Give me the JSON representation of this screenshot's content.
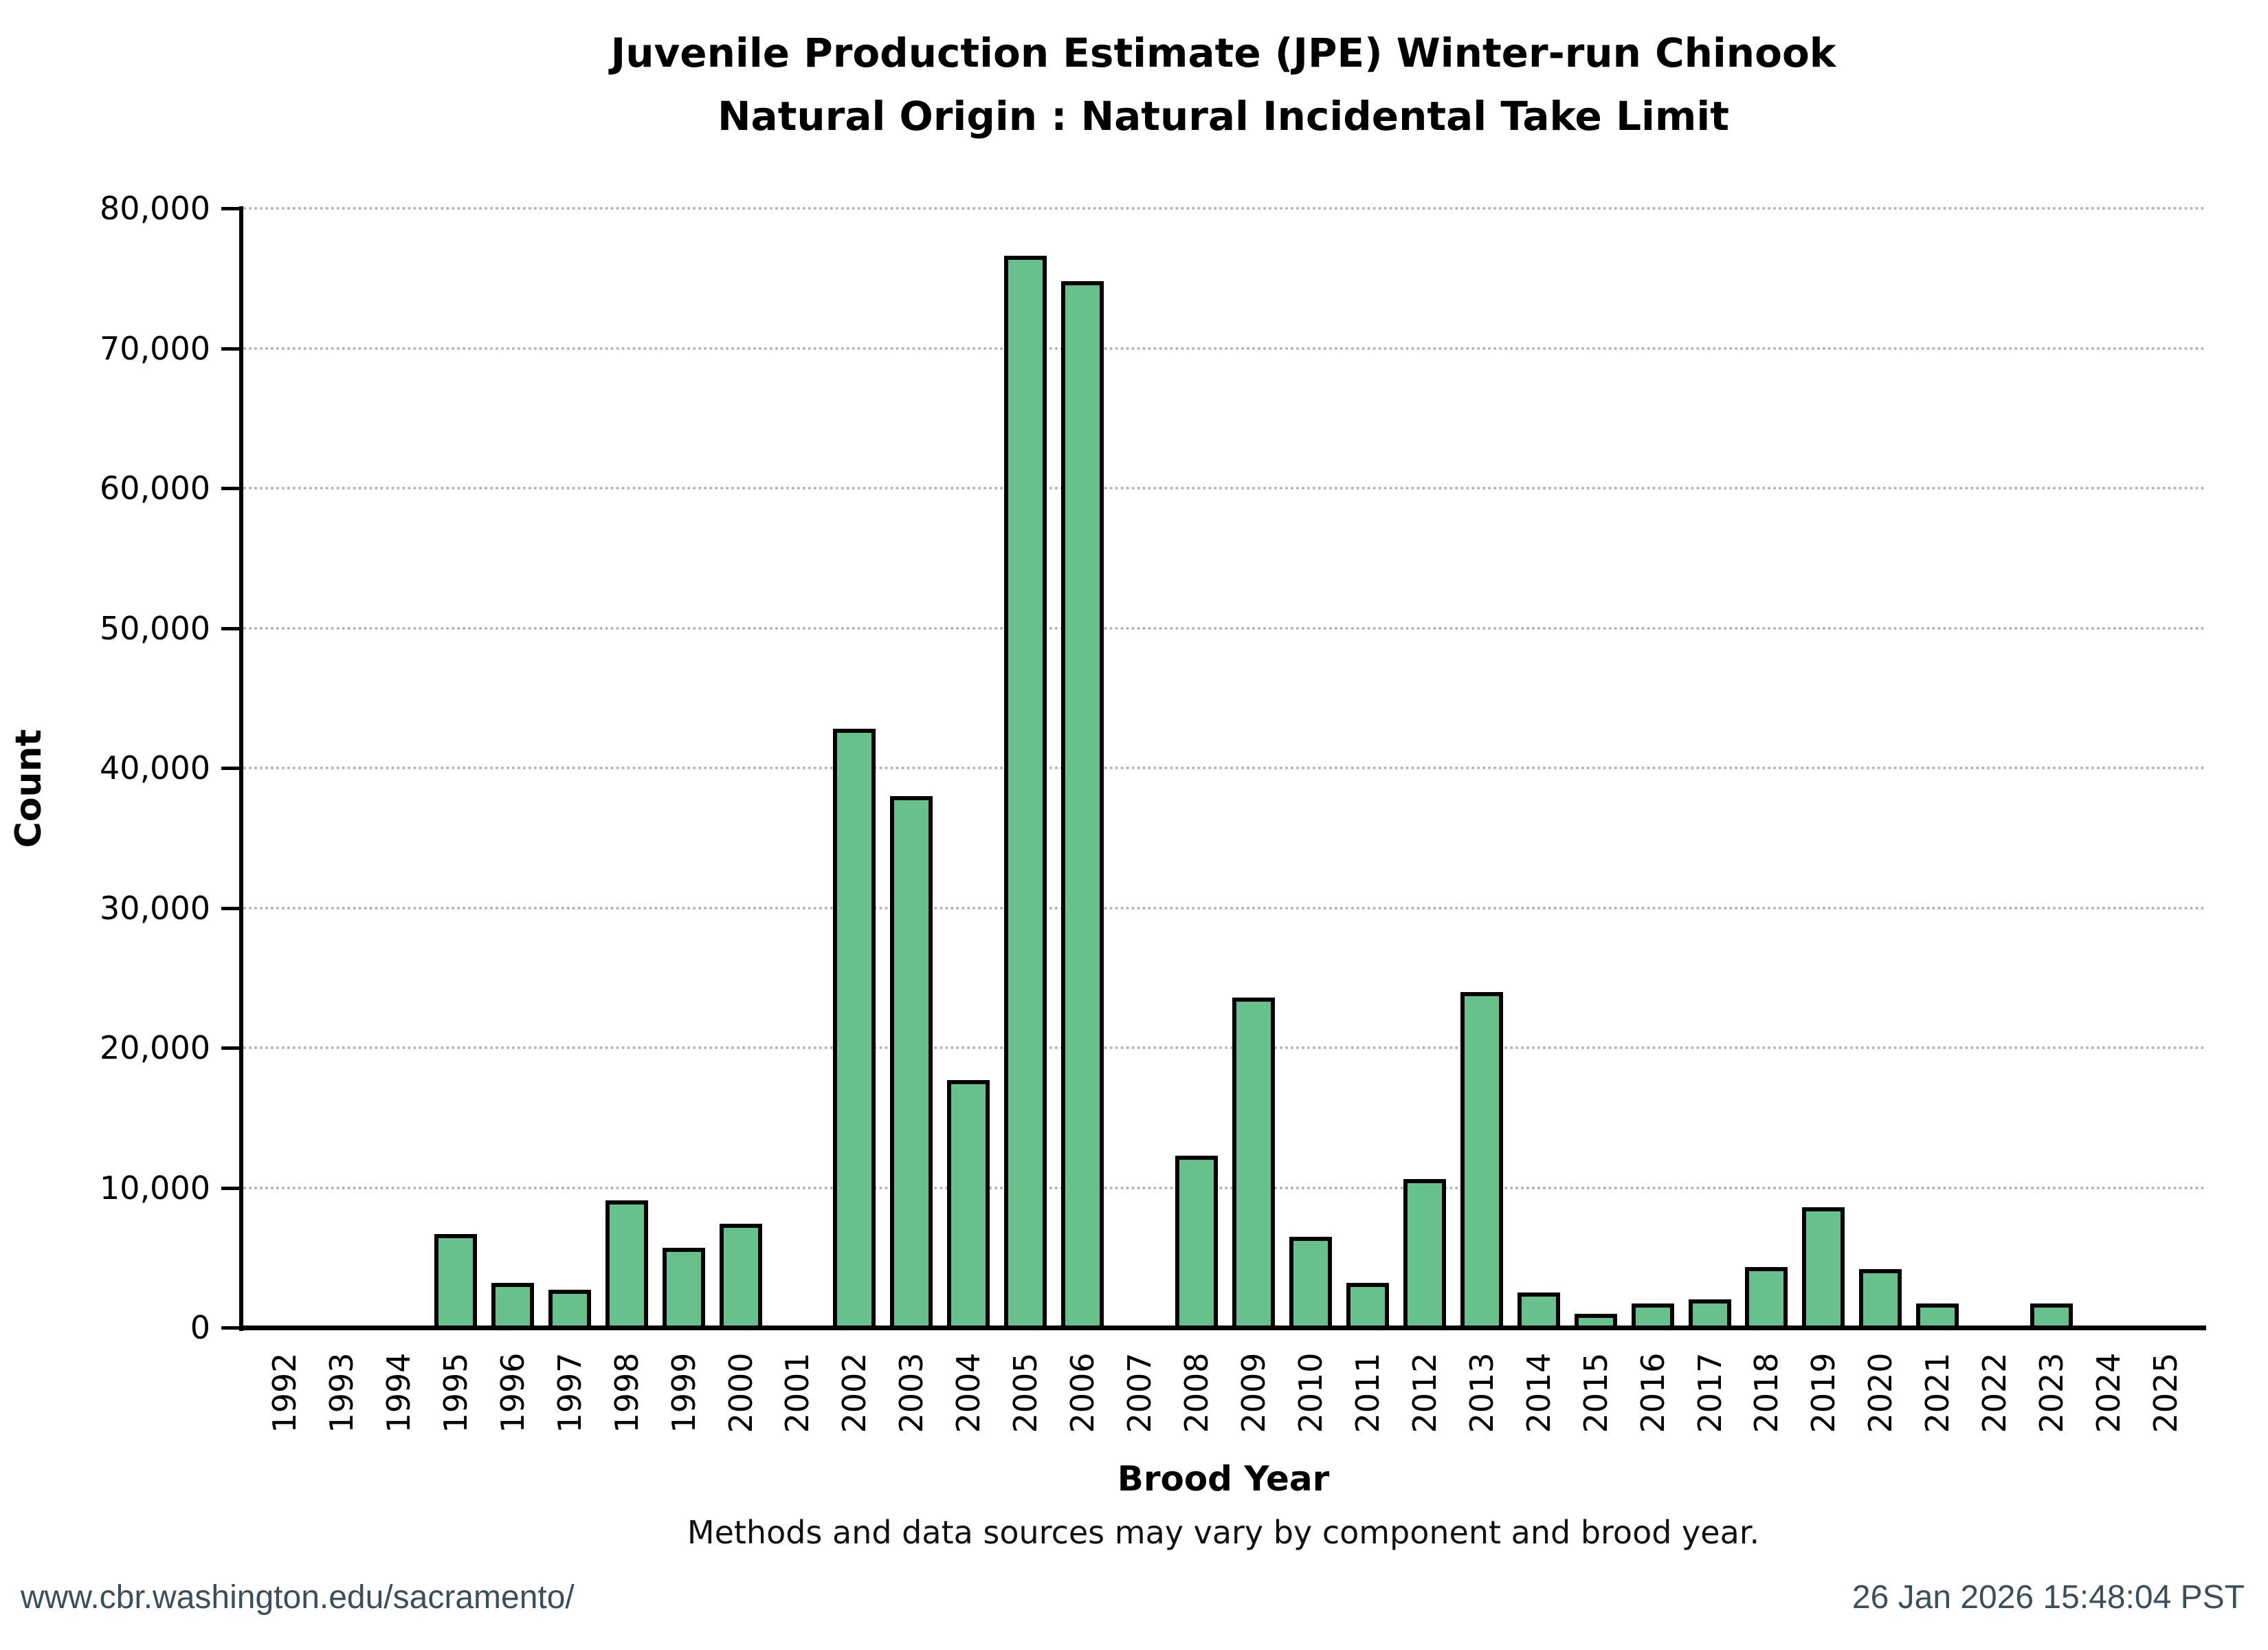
{
  "header": {
    "title_line1": "Juvenile Production Estimate (JPE) Winter-run Chinook",
    "title_line2": "Natural Origin : Natural Incidental Take Limit"
  },
  "axes": {
    "x_label": "Brood Year",
    "y_label": "Count"
  },
  "note": "Methods and data sources may vary by component and brood year.",
  "footer": {
    "left": "www.cbr.washington.edu/sacramento/",
    "right": "26 Jan 2026 15:48:04 PST"
  },
  "colors": {
    "bar_fill": "#66c18c",
    "bar_border": "#000000",
    "gridline": "#b3b3b3",
    "footer_text": "#3c4f58",
    "background": "#ffffff"
  },
  "chart_data": {
    "type": "bar",
    "title": "Juvenile Production Estimate (JPE) Winter-run Chinook — Natural Origin : Natural Incidental Take Limit",
    "xlabel": "Brood Year",
    "ylabel": "Count",
    "ylim": [
      0,
      80000
    ],
    "grid": "horizontal dotted",
    "legend": "none",
    "y_ticks": [
      {
        "value": 0,
        "label": "0"
      },
      {
        "value": 10000,
        "label": "10,000"
      },
      {
        "value": 20000,
        "label": "20,000"
      },
      {
        "value": 30000,
        "label": "30,000"
      },
      {
        "value": 40000,
        "label": "40,000"
      },
      {
        "value": 50000,
        "label": "50,000"
      },
      {
        "value": 60000,
        "label": "60,000"
      },
      {
        "value": 70000,
        "label": "70,000"
      },
      {
        "value": 80000,
        "label": "80,000"
      }
    ],
    "categories": [
      "1992",
      "1993",
      "1994",
      "1995",
      "1996",
      "1997",
      "1998",
      "1999",
      "2000",
      "2001",
      "2002",
      "2003",
      "2004",
      "2005",
      "2006",
      "2007",
      "2008",
      "2009",
      "2010",
      "2011",
      "2012",
      "2013",
      "2014",
      "2015",
      "2016",
      "2017",
      "2018",
      "2019",
      "2020",
      "2021",
      "2022",
      "2023",
      "2024",
      "2025"
    ],
    "values": [
      null,
      null,
      null,
      6700,
      3200,
      2700,
      9100,
      5700,
      7400,
      null,
      42800,
      38000,
      17700,
      76600,
      74800,
      null,
      12300,
      23600,
      6500,
      3200,
      10600,
      24000,
      2500,
      1000,
      1700,
      2000,
      4300,
      8600,
      4200,
      1700,
      null,
      1700,
      null,
      null
    ]
  }
}
